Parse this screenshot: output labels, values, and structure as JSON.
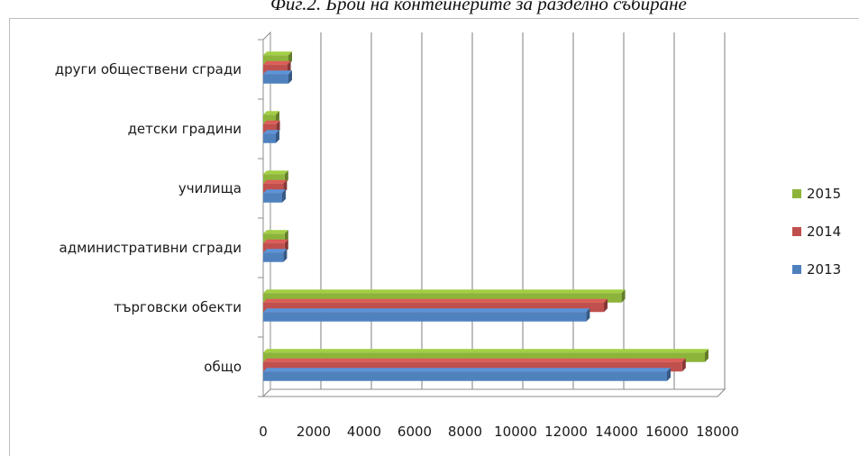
{
  "caption": "Фиг.2. Брой на контейнерите за разделно събиране",
  "colors": {
    "2015": "#8db43a",
    "2014": "#c0504d",
    "2013": "#4f81bd"
  },
  "chart_data": {
    "type": "bar",
    "orientation": "horizontal",
    "categories": [
      "общо",
      "търговски обекти",
      "административни сгради",
      "училища",
      "детски градини",
      "други обществени сгради"
    ],
    "series": [
      {
        "name": "2013",
        "values": [
          16000,
          12800,
          800,
          750,
          500,
          1000
        ]
      },
      {
        "name": "2014",
        "values": [
          16600,
          13500,
          850,
          800,
          520,
          950
        ]
      },
      {
        "name": "2015",
        "values": [
          17500,
          14200,
          850,
          850,
          500,
          1000
        ]
      }
    ],
    "xlim": [
      0,
      18000
    ],
    "xticks": [
      "0",
      "2000",
      "4000",
      "6000",
      "8000",
      "10000",
      "12000",
      "14000",
      "16000",
      "18000"
    ],
    "legend_order": [
      "2015",
      "2014",
      "2013"
    ],
    "legend_position": "right",
    "grid": true
  }
}
